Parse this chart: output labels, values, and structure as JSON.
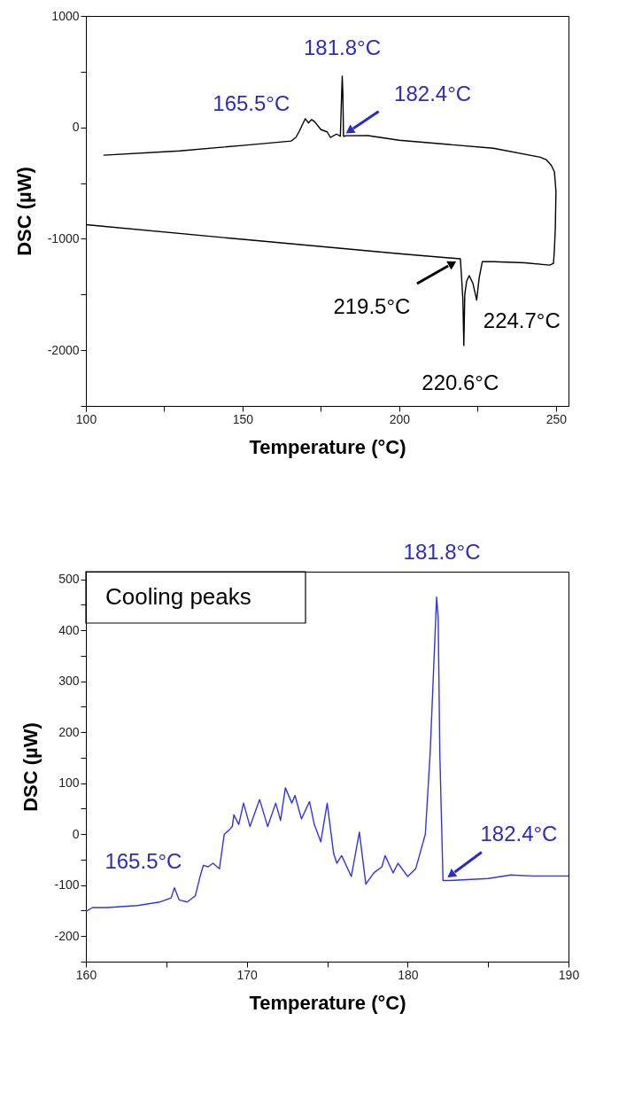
{
  "chart_data": [
    {
      "type": "line",
      "xlabel": "Temperature (°C)",
      "ylabel": "DSC (µW)",
      "xlim": [
        100,
        254
      ],
      "xticks": [
        100,
        {
          "value": 125,
          "label": null
        },
        150,
        {
          "value": 175,
          "label": null
        },
        200,
        {
          "value": 225,
          "label": null
        },
        250
      ],
      "ylim": [
        -2500,
        1000
      ],
      "yticks": [
        {
          "value": -2500,
          "label": null
        },
        -2000,
        {
          "value": -1500,
          "label": null
        },
        -1000,
        {
          "value": -500,
          "label": null
        },
        0,
        {
          "value": 500,
          "label": null
        },
        1000
      ],
      "series": [
        {
          "color": "#000000",
          "x": [
            100,
            150,
            200,
            219.5,
            220.0,
            220.3,
            220.6,
            220.9,
            221.5,
            222.3,
            223.5,
            224.7,
            225.5,
            226.5,
            230,
            240,
            248,
            249.2,
            249.5,
            249.8,
            250,
            249.5,
            248.5,
            247,
            245,
            230,
            200,
            190,
            183,
            182.4,
            182.2,
            182.0,
            181.8,
            181.5,
            181.2,
            180,
            178,
            177,
            175,
            173,
            172,
            171,
            170,
            169,
            168,
            167,
            165.5,
            150,
            130,
            105.6
          ],
          "values": [
            -873,
            -1005,
            -1134,
            -1180,
            -1400,
            -1550,
            -1958,
            -1500,
            -1380,
            -1330,
            -1400,
            -1550,
            -1350,
            -1205,
            -1205,
            -1215,
            -1236,
            -1220,
            -1100,
            -900,
            -574,
            -398,
            -340,
            -292,
            -268,
            -187,
            -116,
            -74,
            -75,
            -80,
            -80,
            300,
            460,
            200,
            -80,
            -60,
            -90,
            -40,
            -20,
            50,
            70,
            40,
            77,
            20,
            -40,
            -90,
            -123,
            -162,
            -211,
            -250
          ]
        }
      ],
      "annotations": [
        {
          "text": "181.8°C",
          "x": 181.8,
          "y": 460
        },
        {
          "text": "165.5°C",
          "x": 165.5,
          "y": -123
        },
        {
          "text": "182.4°C",
          "x": 182.4,
          "y": -80
        },
        {
          "text": "219.5°C",
          "x": 219.5,
          "y": -1180
        },
        {
          "text": "224.7°C",
          "x": 224.7,
          "y": -1550
        },
        {
          "text": "220.6°C",
          "x": 220.6,
          "y": -1958
        }
      ]
    },
    {
      "type": "line",
      "xlabel": "Temperature (°C)",
      "ylabel": "DSC (µW)",
      "xlim": [
        160,
        190
      ],
      "xticks": [
        160,
        {
          "value": 165,
          "label": null
        },
        170,
        {
          "value": 175,
          "label": null
        },
        180,
        {
          "value": 185,
          "label": null
        },
        190
      ],
      "ylim": [
        -250,
        515
      ],
      "yticks": [
        {
          "value": -250,
          "label": null
        },
        -200,
        {
          "value": -150,
          "label": null
        },
        -100,
        {
          "value": -50,
          "label": null
        },
        0,
        {
          "value": 50,
          "label": null
        },
        100,
        {
          "value": 150,
          "label": null
        },
        200,
        {
          "value": 250,
          "label": null
        },
        300,
        {
          "value": 350,
          "label": null
        },
        400,
        {
          "value": 450,
          "label": null
        },
        500
      ],
      "series": [
        {
          "color": "#3333e6",
          "x": [
            160,
            160.4,
            161.3,
            163.2,
            164.6,
            165.3,
            165.5,
            165.8,
            166.3,
            166.8,
            167.1,
            167.3,
            167.6,
            167.9,
            168.3,
            168.6,
            168.9,
            169.1,
            169.2,
            169.5,
            169.8,
            170.2,
            170.8,
            171.3,
            171.8,
            172.1,
            172.4,
            172.8,
            173.0,
            173.4,
            173.9,
            174.2,
            174.6,
            175.0,
            175.4,
            175.6,
            175.9,
            176.5,
            177.0,
            177.4,
            177.9,
            178.4,
            178.6,
            179.1,
            179.4,
            180.0,
            180.5,
            181.1,
            181.4,
            181.8,
            181.9,
            182.0,
            182.2,
            182.6,
            185.0,
            186.4,
            187.8,
            190
          ],
          "values": [
            -152,
            -144,
            -144,
            -140,
            -133,
            -125,
            -105,
            -129,
            -133,
            -121,
            -83,
            -61,
            -64,
            -57,
            -68,
            0,
            8,
            15,
            38,
            19,
            61,
            15,
            68,
            15,
            61,
            27,
            91,
            61,
            76,
            30,
            64,
            19,
            -15,
            61,
            -38,
            -57,
            -42,
            -83,
            4,
            -98,
            -76,
            -64,
            -42,
            -76,
            -57,
            -83,
            -68,
            0,
            159,
            465,
            424,
            159,
            -91,
            -91,
            -87,
            -80,
            -82,
            -82
          ]
        }
      ],
      "annotations": [
        "Cooling peaks",
        {
          "text": "181.8°C",
          "x": 181.8,
          "y": 465
        },
        {
          "text": "165.5°C",
          "x": 165.5,
          "y": -105
        },
        {
          "text": "182.4°C",
          "x": 182.4,
          "y": -91
        }
      ]
    }
  ]
}
